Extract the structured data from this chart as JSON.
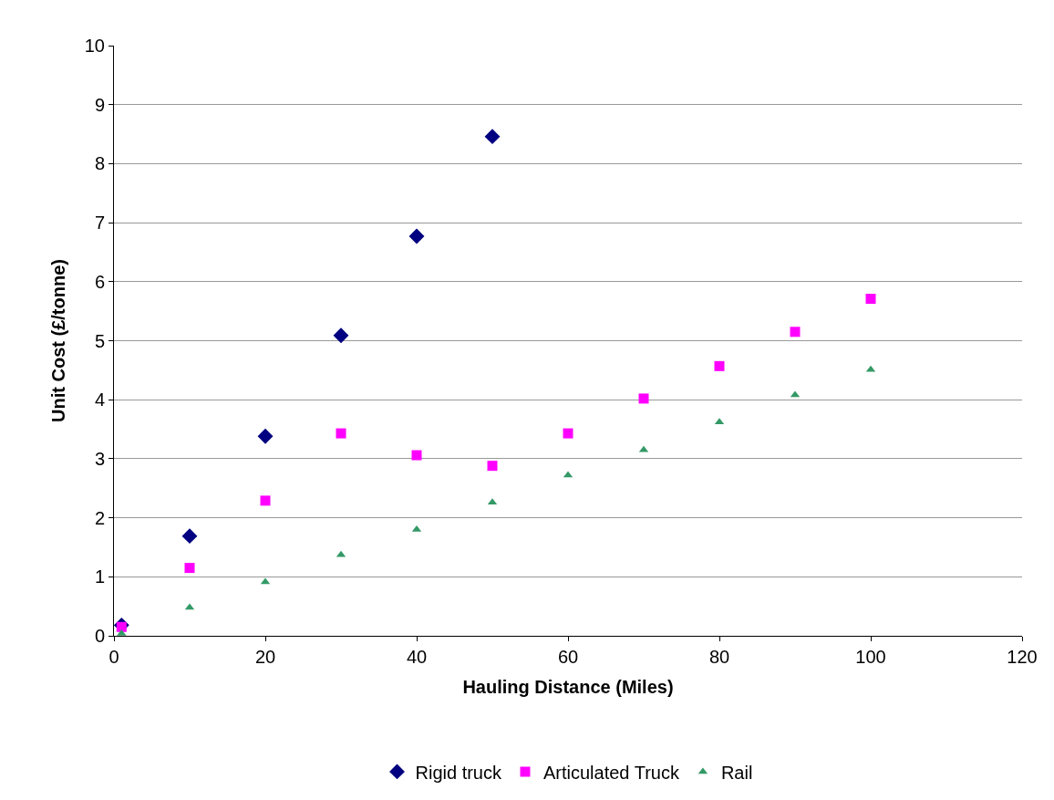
{
  "chart_data": {
    "type": "scatter",
    "xlabel": "Hauling Distance (Miles)",
    "ylabel": "Unit Cost (£/tonne)",
    "xlim": [
      0,
      120
    ],
    "xticks": [
      0,
      20,
      40,
      60,
      80,
      100,
      120
    ],
    "ylim": [
      0,
      10
    ],
    "yticks": [
      0,
      1,
      2,
      3,
      4,
      5,
      6,
      7,
      8,
      9,
      10
    ],
    "grid": "y",
    "legend": "bottom",
    "series": [
      {
        "name": "Rigid truck",
        "color": "#000080",
        "marker": "diamond",
        "x": [
          1,
          10,
          20,
          30,
          40,
          50
        ],
        "values": [
          0.18,
          1.69,
          3.38,
          5.09,
          6.77,
          8.46
        ]
      },
      {
        "name": "Articulated Truck",
        "color": "#ff00ff",
        "marker": "square",
        "x": [
          1,
          10,
          20,
          30,
          40,
          50,
          60,
          70,
          80,
          90,
          100
        ],
        "values": [
          0.15,
          1.15,
          2.29,
          3.43,
          3.06,
          2.88,
          3.43,
          4.02,
          4.57,
          5.15,
          5.71
        ]
      },
      {
        "name": "Rail",
        "color": "#339966",
        "marker": "triangle",
        "x": [
          1,
          10,
          20,
          30,
          40,
          50,
          60,
          70,
          80,
          90,
          100
        ],
        "values": [
          0.04,
          0.48,
          0.91,
          1.37,
          1.8,
          2.26,
          2.72,
          3.15,
          3.62,
          4.08,
          4.51
        ]
      }
    ]
  }
}
